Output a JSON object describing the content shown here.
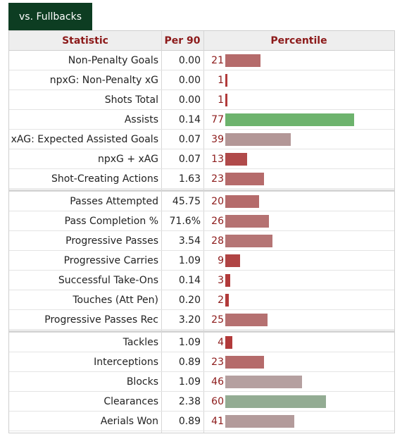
{
  "tab": {
    "label": "vs. Fullbacks"
  },
  "headers": {
    "statistic": "Statistic",
    "per90": "Per 90",
    "percentile": "Percentile"
  },
  "colors": {
    "low": "#b8555f",
    "mid": "#b49a9a",
    "high": "#6db36d",
    "highmid": "#8fb08f",
    "vlow": "#b0383f"
  },
  "rows": [
    {
      "stat": "Non-Penalty Goals",
      "per90": "0.00",
      "pct": "21",
      "pct_value": 21,
      "color": "#b56b6b"
    },
    {
      "stat": "npxG: Non-Penalty xG",
      "per90": "0.00",
      "pct": "1",
      "pct_value": 1,
      "color": "#b23a3a"
    },
    {
      "stat": "Shots Total",
      "per90": "0.00",
      "pct": "1",
      "pct_value": 1,
      "color": "#b23a3a"
    },
    {
      "stat": "Assists",
      "per90": "0.14",
      "pct": "77",
      "pct_value": 77,
      "color": "#6db36d"
    },
    {
      "stat": "xAG: Expected Assisted Goals",
      "per90": "0.07",
      "pct": "39",
      "pct_value": 39,
      "color": "#b39797"
    },
    {
      "stat": "npxG + xAG",
      "per90": "0.07",
      "pct": "13",
      "pct_value": 13,
      "color": "#b04a4a"
    },
    {
      "stat": "Shot-Creating Actions",
      "per90": "1.63",
      "pct": "23",
      "pct_value": 23,
      "color": "#b56b6b"
    },
    {
      "stat": "Passes Attempted",
      "per90": "45.75",
      "pct": "20",
      "pct_value": 20,
      "color": "#b56b6b"
    },
    {
      "stat": "Pass Completion %",
      "per90": "71.6%",
      "pct": "26",
      "pct_value": 26,
      "color": "#b57272"
    },
    {
      "stat": "Progressive Passes",
      "per90": "3.54",
      "pct": "28",
      "pct_value": 28,
      "color": "#b57575"
    },
    {
      "stat": "Progressive Carries",
      "per90": "1.09",
      "pct": "9",
      "pct_value": 9,
      "color": "#b04444"
    },
    {
      "stat": "Successful Take-Ons",
      "per90": "0.14",
      "pct": "3",
      "pct_value": 3,
      "color": "#b23a3a"
    },
    {
      "stat": "Touches (Att Pen)",
      "per90": "0.20",
      "pct": "2",
      "pct_value": 2,
      "color": "#b23a3a"
    },
    {
      "stat": "Progressive Passes Rec",
      "per90": "3.20",
      "pct": "25",
      "pct_value": 25,
      "color": "#b57070"
    },
    {
      "stat": "Tackles",
      "per90": "1.09",
      "pct": "4",
      "pct_value": 4,
      "color": "#b23a3a"
    },
    {
      "stat": "Interceptions",
      "per90": "0.89",
      "pct": "23",
      "pct_value": 23,
      "color": "#b56b6b"
    },
    {
      "stat": "Blocks",
      "per90": "1.09",
      "pct": "46",
      "pct_value": 46,
      "color": "#b5a0a0"
    },
    {
      "stat": "Clearances",
      "per90": "2.38",
      "pct": "60",
      "pct_value": 60,
      "color": "#93ac93"
    },
    {
      "stat": "Aerials Won",
      "per90": "0.89",
      "pct": "41",
      "pct_value": 41,
      "color": "#b39b9b"
    }
  ]
}
